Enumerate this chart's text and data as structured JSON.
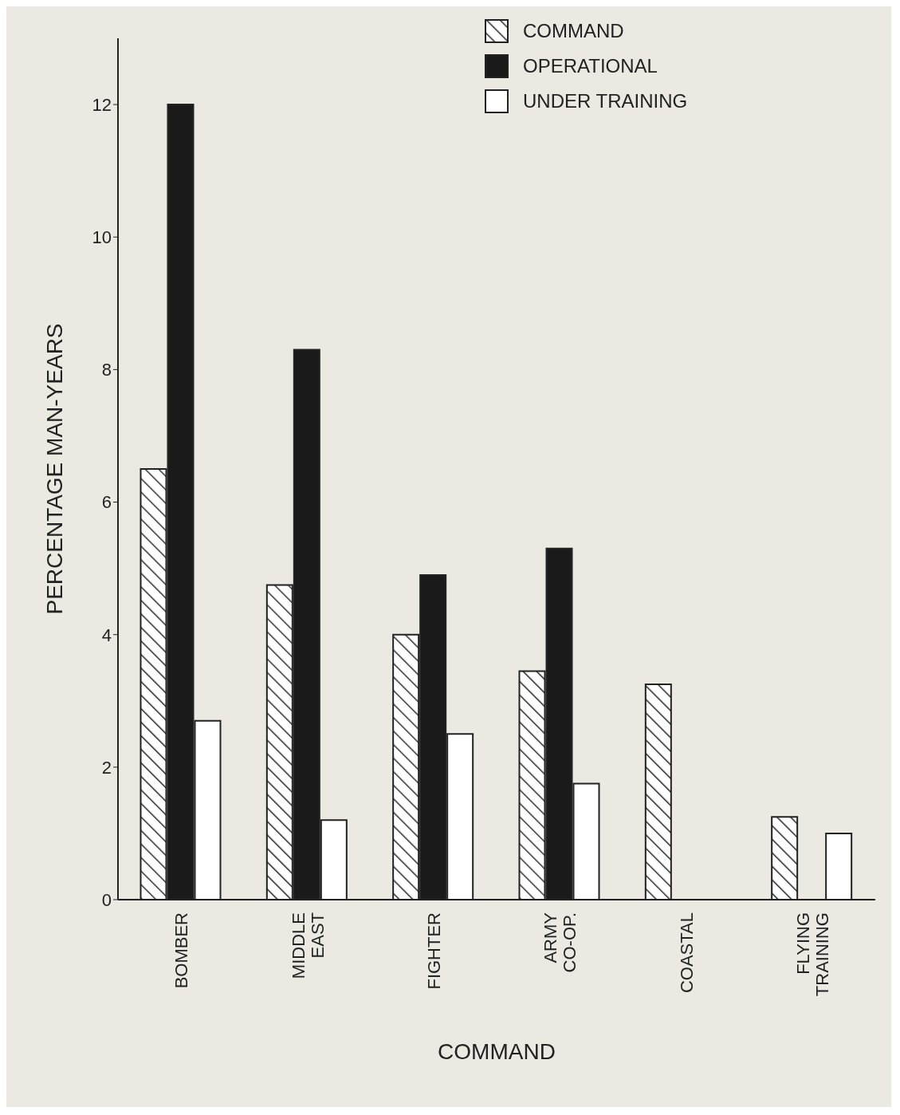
{
  "chart_data": {
    "type": "bar",
    "xlabel": "COMMAND",
    "ylabel": "PERCENTAGE MAN-YEARS",
    "categories": [
      "BOMBER",
      "MIDDLE EAST",
      "FIGHTER",
      "ARMY CO-OP.",
      "COASTAL",
      "FLYING TRAINING"
    ],
    "series": [
      {
        "name": "COMMAND",
        "color": "#2a2a2a",
        "values": [
          6.5,
          4.75,
          4.0,
          3.45,
          3.25,
          1.25
        ]
      },
      {
        "name": "OPERATIONAL",
        "color": "#1a1a1a",
        "values": [
          12.0,
          8.3,
          4.9,
          5.3,
          null,
          null
        ]
      },
      {
        "name": "UNDER TRAINING",
        "color": "#ffffff",
        "values": [
          2.7,
          1.2,
          2.5,
          1.75,
          null,
          1.0
        ]
      }
    ],
    "ylim": [
      0,
      13
    ],
    "yticks": [
      0,
      2,
      4,
      6,
      8,
      10,
      12
    ],
    "grid": false,
    "legend": "top right"
  }
}
